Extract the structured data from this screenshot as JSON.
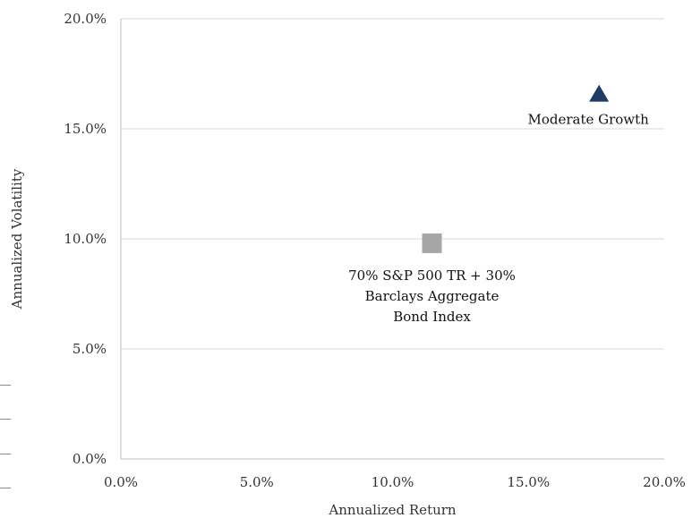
{
  "chart_data": {
    "type": "scatter",
    "title": "",
    "xlabel": "Annualized Return",
    "ylabel": "Annualized Volatility",
    "xlim": [
      0,
      0.2
    ],
    "ylim": [
      0,
      0.2
    ],
    "x_ticks": [
      "0.0%",
      "5.0%",
      "10.0%",
      "15.0%",
      "20.0%"
    ],
    "y_ticks": [
      "0.0%",
      "5.0%",
      "10.0%",
      "15.0%",
      "20.0%"
    ],
    "grid": "horizontal",
    "series": [
      {
        "name": "Moderate Growth",
        "marker": "triangle",
        "color": "#1f3c66",
        "x": [
          0.176
        ],
        "y": [
          0.166
        ],
        "label_lines": [
          "Moderate Growth"
        ]
      },
      {
        "name": "70% S&P 500 TR + 30% Barclays Aggregate Bond Index",
        "marker": "square",
        "color": "#a6a6a6",
        "x": [
          0.1145
        ],
        "y": [
          0.098
        ],
        "label_lines": [
          "70% S&P 500 TR + 30%",
          "Barclays Aggregate",
          "Bond Index"
        ]
      }
    ]
  }
}
